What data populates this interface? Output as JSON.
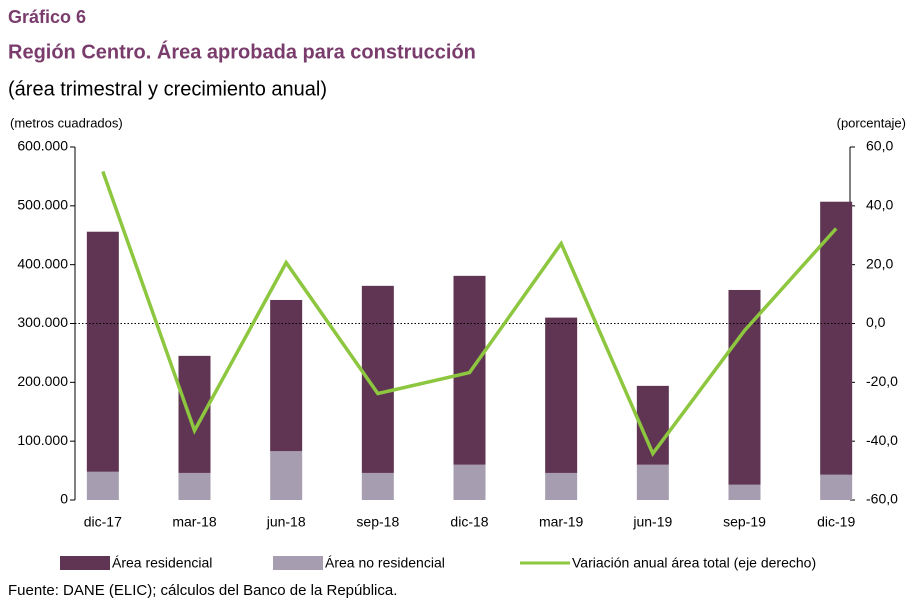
{
  "chart_data": {
    "type": "bar",
    "kicker": "Gráfico 6",
    "title": "Región Centro.  Área aprobada para construcción",
    "subtitle": "(área trimestral y crecimiento anual)",
    "ylabel": "(metros cuadrados)",
    "y2label": "(porcentaje)",
    "source": "Fuente: DANE (ELIC); cálculos del Banco de la República.",
    "stacked": true,
    "categories": [
      "dic-17",
      "mar-18",
      "jun-18",
      "sep-18",
      "dic-18",
      "mar-19",
      "jun-19",
      "sep-19",
      "dic-19"
    ],
    "series": [
      {
        "name": "Área no residencial",
        "type": "bar",
        "color": "#a69eb0",
        "values": [
          48000,
          46000,
          83000,
          46000,
          60000,
          46000,
          60000,
          26000,
          43000
        ]
      },
      {
        "name": "Área residencial",
        "type": "bar",
        "color": "#5f3553",
        "values": [
          408000,
          199000,
          257000,
          318000,
          321000,
          264000,
          134000,
          331000,
          464000
        ]
      },
      {
        "name": "Variación anual área total (eje derecho)",
        "type": "line",
        "axis": "y2",
        "color": "#8dc63f",
        "values": [
          51.7,
          -36.4,
          20.7,
          -23.8,
          -16.7,
          27.2,
          -44.2,
          -2.4,
          32.3
        ]
      }
    ],
    "legend_order": [
      1,
      0,
      2
    ],
    "ylim": [
      0,
      600000
    ],
    "yticks": [
      0,
      {
        "value": 100000,
        "label": "100.000"
      },
      {
        "value": 200000,
        "label": "200.000"
      },
      {
        "value": 300000,
        "label": "300.000"
      },
      {
        "value": 400000,
        "label": "400.000"
      },
      {
        "value": 500000,
        "label": "500.000"
      },
      {
        "value": 600000,
        "label": "600.000"
      }
    ],
    "y2lim": [
      -60,
      60
    ],
    "y2ticks": [
      {
        "value": -60,
        "label": "-60,0"
      },
      {
        "value": -40,
        "label": "-40,0"
      },
      {
        "value": -20,
        "label": "-20,0"
      },
      {
        "value": 0,
        "label": "0,0"
      },
      {
        "value": 20,
        "label": "20,0"
      },
      {
        "value": 40,
        "label": "40,0"
      },
      {
        "value": 60,
        "label": "60,0"
      }
    ],
    "y2_reference_line": 0
  }
}
